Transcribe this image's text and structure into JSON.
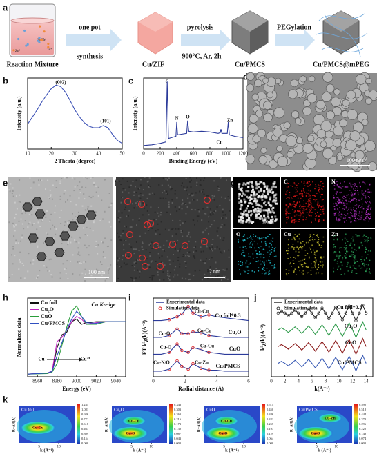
{
  "panel_letters": [
    "a",
    "b",
    "c",
    "d",
    "e",
    "f",
    "g",
    "h",
    "i",
    "j",
    "k"
  ],
  "scheme": {
    "steps": [
      "Reaction Mixture",
      "Cu/ZIF",
      "Cu/PMCS",
      "Cu/PMCS@mPEG"
    ],
    "arrows": [
      [
        "one pot",
        "synthesis"
      ],
      [
        "pyrolysis",
        "900°C, Ar, 2h"
      ],
      [
        "PEGylation"
      ]
    ],
    "beaker_labels": [
      "Zn²⁺",
      "2MIM",
      "Cu²⁺"
    ]
  },
  "chart_data": [
    {
      "type": "line",
      "xlabel": "2 Theata (degree)",
      "ylabel": "Intensity (a.u.)",
      "xlim": [
        10,
        50
      ],
      "xticks": [
        10,
        20,
        30,
        40,
        50
      ],
      "ylim": [
        0,
        1
      ],
      "x": [
        10,
        12,
        14,
        16,
        18,
        20,
        22,
        24,
        26,
        28,
        30,
        32,
        34,
        36,
        38,
        40,
        42,
        44,
        46,
        48,
        50
      ],
      "series": [
        {
          "color": "#3a4fb5",
          "values": [
            0.35,
            0.45,
            0.55,
            0.66,
            0.76,
            0.85,
            0.9,
            0.88,
            0.8,
            0.68,
            0.55,
            0.45,
            0.37,
            0.32,
            0.3,
            0.3,
            0.33,
            0.3,
            0.2,
            0.12,
            0.08
          ]
        }
      ],
      "annotations": [
        "(002)",
        "(101)"
      ]
    },
    {
      "type": "line",
      "xlabel": "Binding Energy (eV)",
      "ylabel": "Intensity (a.u.)",
      "xlim": [
        0,
        1200
      ],
      "xticks": [
        0,
        200,
        400,
        600,
        800,
        1000,
        1200
      ],
      "ylim": [
        0,
        1
      ],
      "x": [
        0,
        100,
        200,
        270,
        285,
        300,
        390,
        400,
        410,
        520,
        532,
        545,
        600,
        700,
        800,
        900,
        925,
        933,
        945,
        1010,
        1022,
        1035,
        1100,
        1200
      ],
      "series": [
        {
          "color": "#2b3a9a",
          "values": [
            0.05,
            0.06,
            0.08,
            0.1,
            0.95,
            0.15,
            0.18,
            0.38,
            0.2,
            0.22,
            0.4,
            0.25,
            0.24,
            0.25,
            0.24,
            0.22,
            0.23,
            0.28,
            0.22,
            0.22,
            0.38,
            0.2,
            0.18,
            0.16
          ]
        }
      ],
      "annotations": [
        "C",
        "N",
        "O",
        "Cu",
        "Zn"
      ]
    },
    {
      "type": "line",
      "xlabel": "Energy (eV)",
      "ylabel": "Normalized data",
      "xlim": [
        8950,
        9050
      ],
      "xticks": [
        8960,
        8980,
        9000,
        9020,
        9040
      ],
      "ylim": [
        -0.05,
        1.45
      ],
      "x": [
        8950,
        8970,
        8975,
        8980,
        8985,
        8990,
        8995,
        9000,
        9005,
        9010,
        9020,
        9030,
        9040,
        9050
      ],
      "series": [
        {
          "name": "Cu foil",
          "color": "#111111",
          "values": [
            0,
            0.02,
            0.05,
            0.5,
            0.75,
            0.8,
            1.0,
            1.05,
            0.95,
            0.98,
            1.0,
            1.0,
            1.0,
            1.0
          ]
        },
        {
          "name": "Cu₂O",
          "color": "#c020c0",
          "values": [
            0,
            0.02,
            0.06,
            0.62,
            0.7,
            0.85,
            1.0,
            1.1,
            1.05,
            0.95,
            0.98,
            1.0,
            1.0,
            1.0
          ]
        },
        {
          "name": "CuO",
          "color": "#2a9d3a",
          "values": [
            0,
            0.01,
            0.04,
            0.2,
            0.55,
            0.9,
            1.2,
            1.3,
            1.1,
            0.95,
            0.95,
            1.0,
            1.0,
            1.0
          ]
        },
        {
          "name": "Cu/PMCS",
          "color": "#3050c0",
          "values": [
            0,
            0.02,
            0.05,
            0.35,
            0.6,
            0.85,
            1.05,
            1.2,
            1.1,
            0.98,
            0.97,
            1.0,
            1.0,
            1.0
          ]
        }
      ],
      "annotations": [
        "Cu K-edge",
        "Cu",
        "Cu²⁺"
      ]
    },
    {
      "type": "line",
      "xlabel": "Radial distance (Å)",
      "ylabel": "FT k³χ(k)(Å⁻³)",
      "xlim": [
        0,
        6
      ],
      "xticks": [
        0,
        2,
        4,
        6
      ],
      "ylim": [
        0,
        4.2
      ],
      "legend": [
        {
          "name": "Experimental data",
          "color": "#2b3a9a"
        },
        {
          "name": "Simulation data",
          "color": "#e02020"
        }
      ],
      "x": [
        0,
        0.5,
        1,
        1.5,
        1.8,
        2.2,
        2.5,
        3,
        3.5,
        4,
        4.5,
        5,
        5.5,
        6
      ],
      "series": [
        {
          "name": "Cu foil*0.3",
          "color": "#2b3a9a",
          "values": [
            3.0,
            3.0,
            3.05,
            3.2,
            3.35,
            3.75,
            3.4,
            3.2,
            3.3,
            3.2,
            3.15,
            3.1,
            3.05,
            3.0
          ],
          "sim": [
            null,
            null,
            3.05,
            3.2,
            3.35,
            3.75,
            3.4,
            3.2,
            3.3,
            null,
            null,
            null,
            null,
            null
          ]
        },
        {
          "name": "Cu₂O",
          "color": "#2b3a9a",
          "values": [
            2.1,
            2.1,
            2.2,
            2.55,
            2.3,
            2.3,
            2.4,
            2.35,
            2.2,
            2.15,
            2.1,
            2.1,
            2.1,
            2.1
          ],
          "sim": [
            null,
            null,
            2.2,
            2.55,
            2.3,
            2.3,
            2.4,
            2.35,
            2.2,
            null,
            null,
            null,
            null,
            null
          ]
        },
        {
          "name": "CuO",
          "color": "#2b3a9a",
          "values": [
            1.2,
            1.2,
            1.3,
            1.75,
            1.4,
            1.3,
            1.55,
            1.45,
            1.3,
            1.25,
            1.2,
            1.2,
            1.2,
            1.2
          ],
          "sim": [
            null,
            null,
            1.3,
            1.75,
            1.4,
            1.3,
            1.55,
            1.45,
            1.3,
            null,
            null,
            null,
            null,
            null
          ]
        },
        {
          "name": "Cu/PMCS",
          "color": "#2b3a9a",
          "values": [
            0.3,
            0.3,
            0.4,
            0.85,
            0.55,
            0.4,
            0.7,
            0.45,
            0.35,
            0.35,
            0.3,
            0.3,
            0.3,
            0.3
          ],
          "sim": [
            null,
            null,
            0.4,
            0.85,
            0.55,
            0.4,
            0.7,
            0.45,
            0.35,
            null,
            null,
            null,
            null,
            null
          ]
        }
      ],
      "annotations": [
        "Cu-Cu",
        "Cu-O",
        "Cu-Cu",
        "Cu-O",
        "Cu-Cu",
        "Cu-N/O",
        "Cu-Zn"
      ]
    },
    {
      "type": "line",
      "xlabel": "k(Å⁻¹)",
      "ylabel": "k³χ(k)(Å⁻³)",
      "xlim": [
        0,
        15
      ],
      "xticks": [
        0,
        2,
        4,
        6,
        8,
        10,
        12,
        14
      ],
      "ylim": [
        -0.8,
        3.9
      ],
      "legend": [
        {
          "name": "Experimental data",
          "color": "#333333"
        },
        {
          "name": "Simulation data",
          "color": "#333333"
        }
      ],
      "x": [
        1,
        1.5,
        2,
        2.5,
        3,
        3.5,
        4,
        4.5,
        5,
        5.5,
        6,
        6.5,
        7,
        7.5,
        8,
        8.5,
        9,
        9.5,
        10,
        10.5,
        11,
        11.5,
        12,
        12.5,
        13,
        13.5,
        14
      ],
      "series": [
        {
          "name": "Cu foil*0.3",
          "color": "#222222",
          "values": [
            3,
            3.12,
            3,
            2.85,
            3,
            3.18,
            3,
            2.79,
            3,
            3.24,
            3,
            2.73,
            3,
            3.3,
            3,
            2.67,
            3,
            3.36,
            3,
            2.61,
            3,
            3.42,
            3,
            2.55,
            3,
            3.48,
            3
          ],
          "sim": [
            3,
            3.12,
            3,
            2.85,
            3,
            3.18,
            3,
            2.79,
            3,
            3.24,
            3,
            2.73,
            3,
            3.3,
            3,
            2.67,
            3,
            3.36,
            3,
            2.61,
            3,
            3.42,
            3,
            2.55,
            3,
            3.48,
            3
          ]
        },
        {
          "name": "Cu₂O",
          "color": "#2e9a4a",
          "values": [
            2,
            2.12,
            2,
            1.85,
            2,
            2.18,
            2,
            1.79,
            2,
            2.24,
            2,
            1.73,
            2,
            2.3,
            2,
            1.67,
            2,
            2.36,
            2,
            1.61,
            2,
            2.42,
            2,
            1.55,
            2,
            2.48,
            2
          ]
        },
        {
          "name": "CuO",
          "color": "#8b1a1a",
          "values": [
            1,
            1.12,
            1,
            0.85,
            1,
            1.18,
            1,
            0.79,
            1,
            1.24,
            1,
            0.73,
            1,
            1.3,
            1,
            0.67,
            1,
            1.36,
            1,
            0.61,
            1,
            1.42,
            1,
            0.55,
            1,
            1.48,
            1
          ]
        },
        {
          "name": "Cu/PMCS",
          "color": "#3a5bb5",
          "values": [
            0,
            0.12,
            0,
            -0.15,
            0,
            0.18,
            0,
            -0.21,
            0,
            0.24,
            0,
            -0.27,
            0,
            0.3,
            0,
            -0.33,
            0,
            0.36,
            0,
            -0.39,
            0,
            0.42,
            0,
            -0.45,
            0,
            0.48,
            0
          ]
        }
      ]
    }
  ],
  "images": {
    "d_scale": "100 nm",
    "e_scale": "100 nm",
    "f_scale": "2 nm",
    "g_tiles": [
      "100nm",
      "C",
      "N",
      "O",
      "Cu",
      "Zn"
    ]
  },
  "wavelet": {
    "xlabel": "k (Å⁻¹)",
    "ylabel": "R+ΔR(Å)",
    "xlim": [
      0,
      14
    ],
    "xticks": [
      5,
      10
    ],
    "maps": [
      {
        "title": "Cu foil",
        "labels": [
          "Cu-Cu"
        ],
        "colorbar": [
          "1.235",
          "1.081",
          "0.926",
          "0.772",
          "0.618",
          "0.463",
          "0.309",
          "0.154",
          "0.000"
        ]
      },
      {
        "title": "Cu₂O",
        "labels": [
          "Cu-Cu",
          "Cu-O"
        ],
        "colorbar": [
          "0.346",
          "0.303",
          "0.260",
          "0.216",
          "0.173",
          "0.130",
          "0.087",
          "0.043",
          "0.000"
        ]
      },
      {
        "title": "CuO",
        "labels": [
          "Cu-Cu",
          "Cu-O"
        ],
        "colorbar": [
          "0.514",
          "0.450",
          "0.386",
          "0.321",
          "0.257",
          "0.193",
          "0.129",
          "0.064",
          "0.000"
        ]
      },
      {
        "title": "Cu/PMCS",
        "labels": [
          "Cu-Zn",
          "Cu-O"
        ],
        "colorbar": [
          "0.592",
          "0.518",
          "0.444",
          "0.370",
          "0.296",
          "0.222",
          "0.148",
          "0.074",
          "0.000"
        ]
      }
    ]
  }
}
